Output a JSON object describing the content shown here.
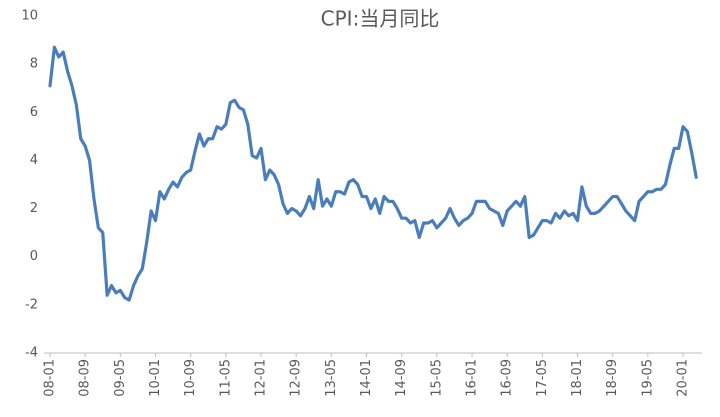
{
  "chart_data": {
    "type": "line",
    "title": "CPI:当月同比",
    "categories": [
      "08-01",
      null,
      null,
      null,
      null,
      null,
      null,
      null,
      "08-09",
      null,
      null,
      null,
      null,
      null,
      null,
      null,
      "09-05",
      null,
      null,
      null,
      null,
      null,
      null,
      null,
      "10-01",
      null,
      null,
      null,
      null,
      null,
      null,
      null,
      "10-09",
      null,
      null,
      null,
      null,
      null,
      null,
      null,
      "11-05",
      null,
      null,
      null,
      null,
      null,
      null,
      null,
      "12-01",
      null,
      null,
      null,
      null,
      null,
      null,
      null,
      "12-09",
      null,
      null,
      null,
      null,
      null,
      null,
      null,
      "13-05",
      null,
      null,
      null,
      null,
      null,
      null,
      null,
      "14-01",
      null,
      null,
      null,
      null,
      null,
      null,
      null,
      "14-09",
      null,
      null,
      null,
      null,
      null,
      null,
      null,
      "15-05",
      null,
      null,
      null,
      null,
      null,
      null,
      null,
      "16-01",
      null,
      null,
      null,
      null,
      null,
      null,
      null,
      "16-09",
      null,
      null,
      null,
      null,
      null,
      null,
      null,
      "17-05",
      null,
      null,
      null,
      null,
      null,
      null,
      null,
      "18-01",
      null,
      null,
      null,
      null,
      null,
      null,
      null,
      "18-09",
      null,
      null,
      null,
      null,
      null,
      null,
      null,
      "19-05",
      null,
      null,
      null,
      null,
      null,
      null,
      null,
      "20-01",
      null,
      null,
      null
    ],
    "values": [
      7.1,
      8.7,
      8.3,
      8.5,
      7.7,
      7.1,
      6.3,
      4.9,
      4.6,
      4.0,
      2.4,
      1.2,
      1.0,
      -1.6,
      -1.2,
      -1.5,
      -1.4,
      -1.7,
      -1.8,
      -1.2,
      -0.8,
      -0.5,
      0.6,
      1.9,
      1.5,
      2.7,
      2.4,
      2.8,
      3.1,
      2.9,
      3.3,
      3.5,
      3.6,
      4.4,
      5.1,
      4.6,
      4.9,
      4.9,
      5.4,
      5.3,
      5.5,
      6.4,
      6.5,
      6.2,
      6.1,
      5.5,
      4.2,
      4.1,
      4.5,
      3.2,
      3.6,
      3.4,
      3.0,
      2.2,
      1.8,
      2.0,
      1.9,
      1.7,
      2.0,
      2.5,
      2.0,
      3.2,
      2.1,
      2.4,
      2.1,
      2.7,
      2.7,
      2.6,
      3.1,
      3.2,
      3.0,
      2.5,
      2.5,
      2.0,
      2.4,
      1.8,
      2.5,
      2.3,
      2.3,
      2.0,
      1.6,
      1.6,
      1.4,
      1.5,
      0.8,
      1.4,
      1.4,
      1.5,
      1.2,
      1.4,
      1.6,
      2.0,
      1.6,
      1.3,
      1.5,
      1.6,
      1.8,
      2.3,
      2.3,
      2.3,
      2.0,
      1.9,
      1.8,
      1.3,
      1.9,
      2.1,
      2.3,
      2.1,
      2.5,
      0.8,
      0.9,
      1.2,
      1.5,
      1.5,
      1.4,
      1.8,
      1.6,
      1.9,
      1.7,
      1.8,
      1.5,
      2.9,
      2.1,
      1.8,
      1.8,
      1.9,
      2.1,
      2.3,
      2.5,
      2.5,
      2.2,
      1.9,
      1.7,
      1.5,
      2.3,
      2.5,
      2.7,
      2.7,
      2.8,
      2.8,
      3.0,
      3.8,
      4.5,
      4.5,
      5.4,
      5.2,
      4.3,
      3.3
    ],
    "color": "#4a7ebb",
    "ylim": [
      -4,
      10
    ],
    "yticks": [
      -4,
      -2,
      0,
      2,
      4,
      6,
      8,
      10
    ]
  }
}
